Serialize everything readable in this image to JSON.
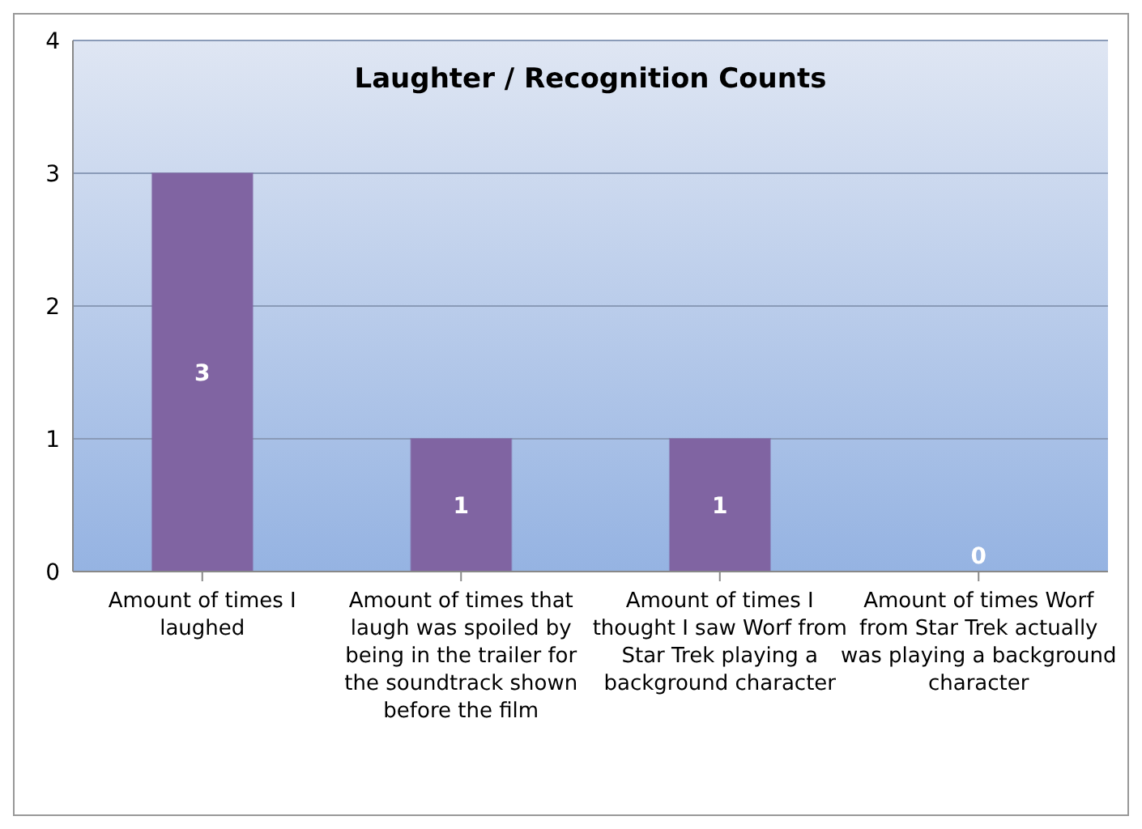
{
  "chart_data": {
    "type": "bar",
    "title": "Laughter / Recognition Counts",
    "categories": [
      "Amount of times I laughed",
      "Amount of times that laugh was spoiled by being in the trailer for the soundtrack shown before the film",
      "Amount of times I thought I saw Worf from Star Trek playing a background character",
      "Amount of times Worf from Star Trek actually was playing a background character"
    ],
    "values": [
      3,
      1,
      1,
      0
    ],
    "color": "#8064a2",
    "ylim": [
      0,
      4
    ],
    "yticks": [
      0,
      1,
      2,
      3,
      4
    ],
    "grid": "y",
    "data_labels": true
  }
}
